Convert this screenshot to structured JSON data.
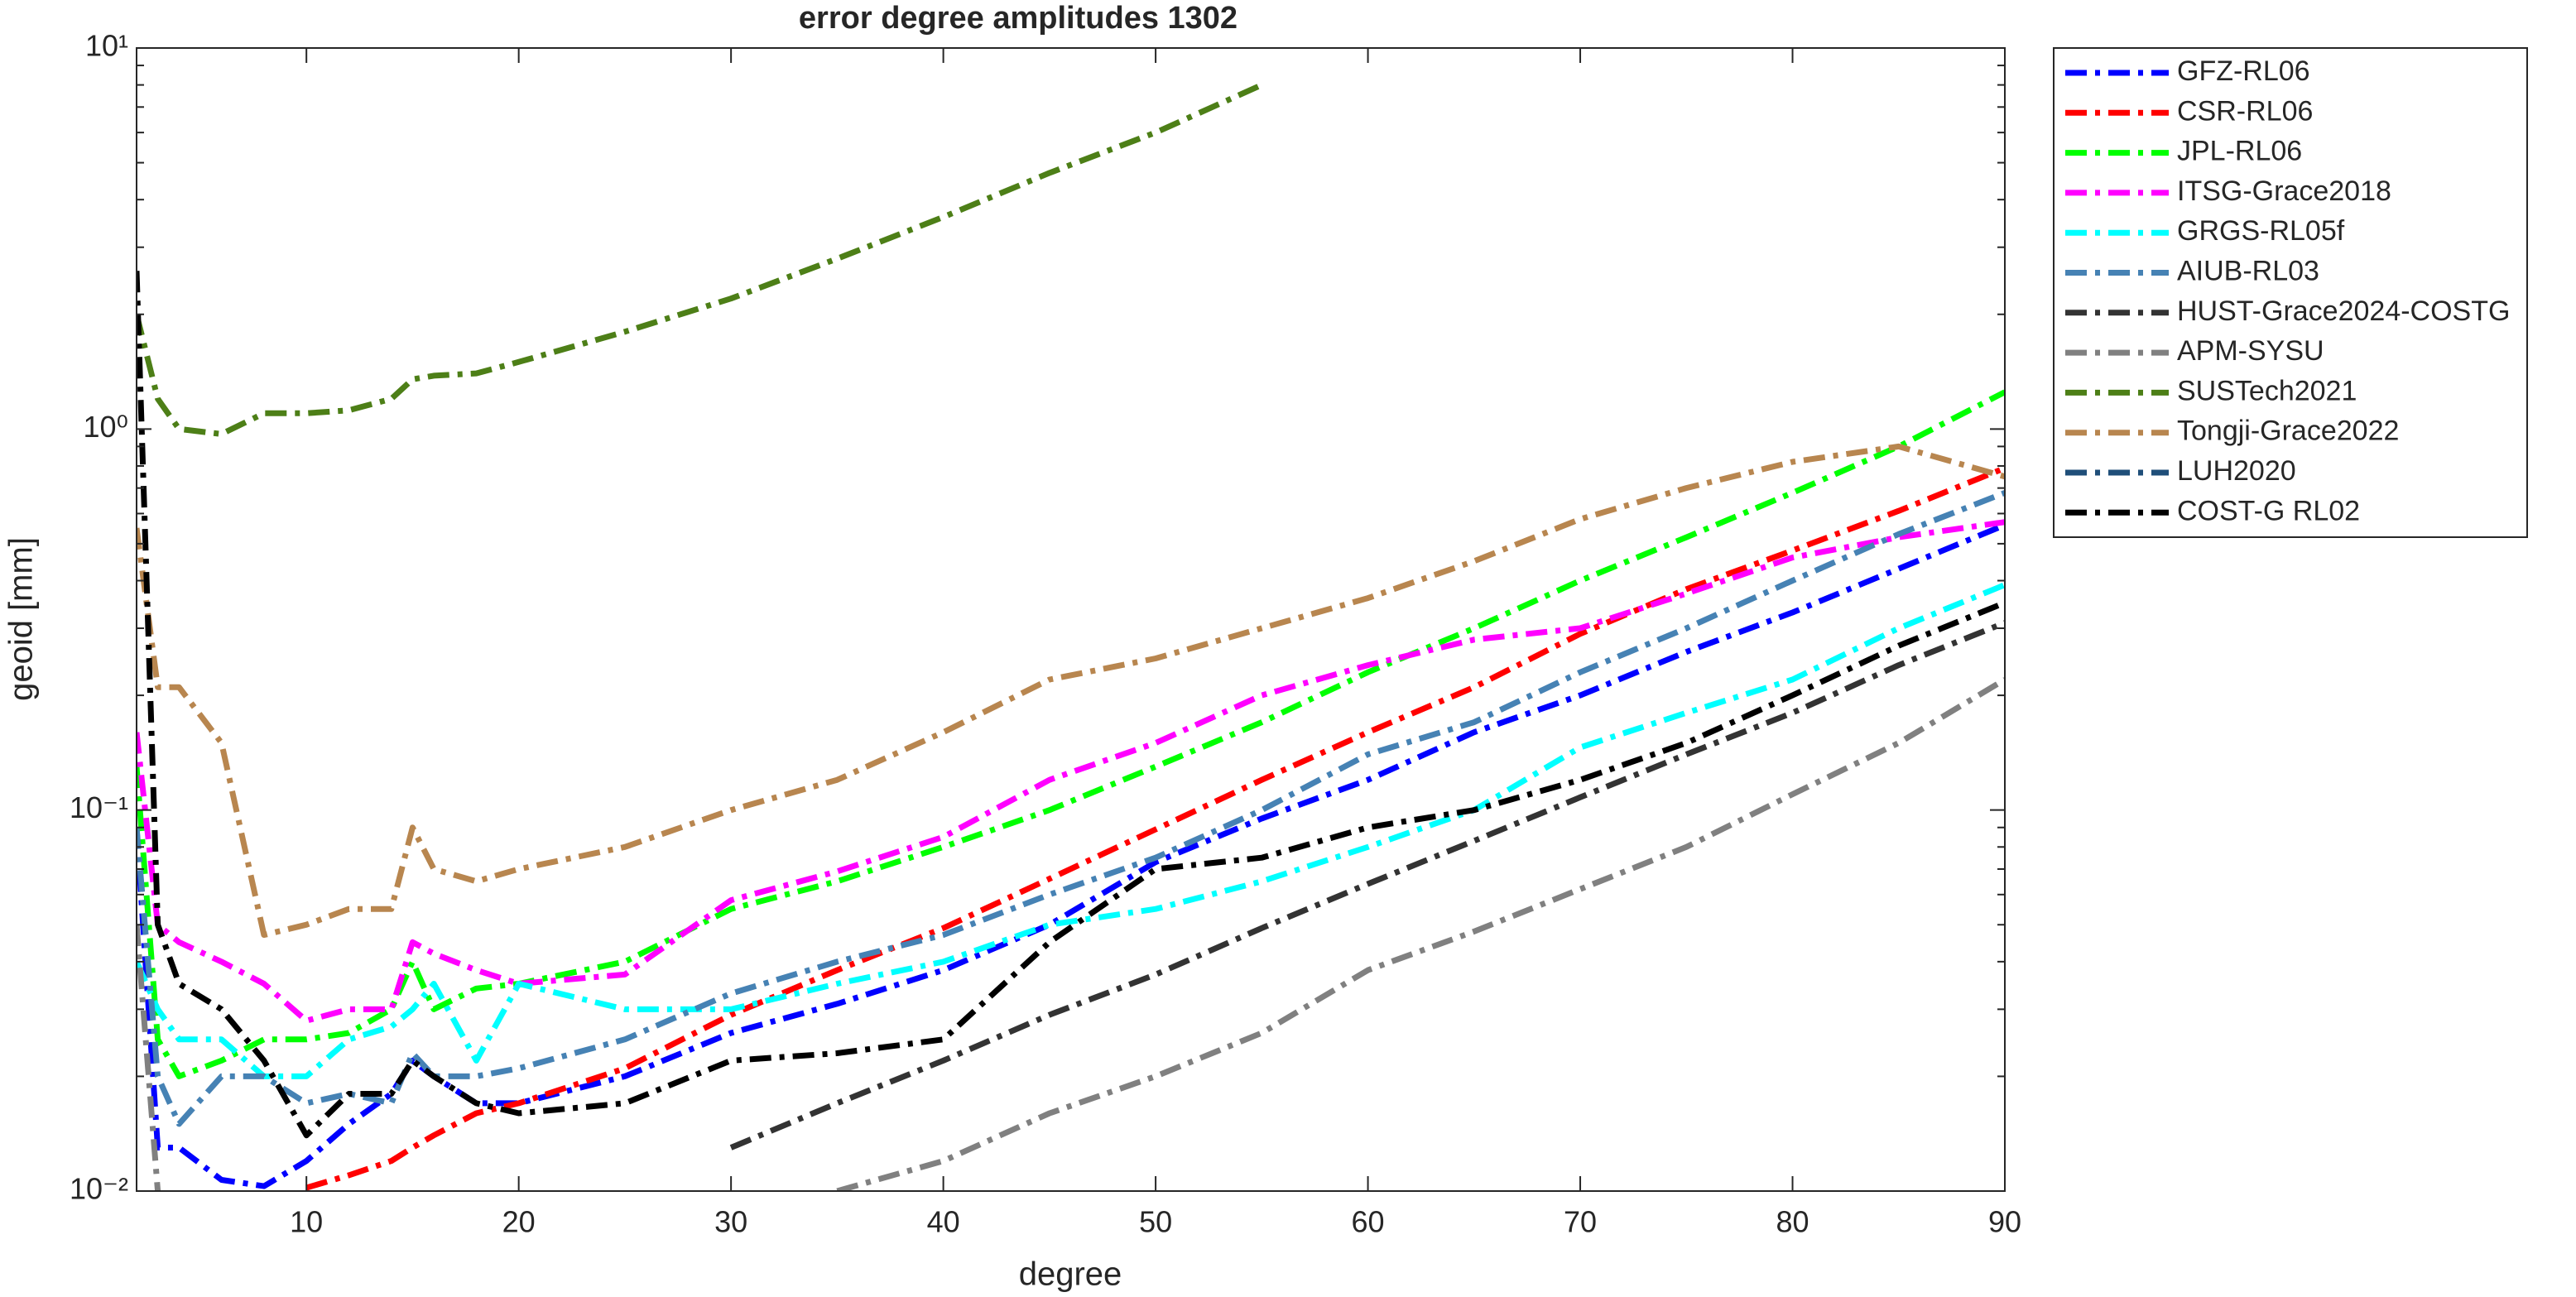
{
  "chart_data": {
    "type": "line",
    "title": "error degree amplitudes 1302",
    "xlabel": "degree",
    "ylabel": "geoid [mm]",
    "log_y": true,
    "legend": "outside right",
    "x": [
      2,
      3,
      4,
      6,
      8,
      10,
      12,
      14,
      15,
      16,
      18,
      20,
      25,
      30,
      35,
      40,
      45,
      50,
      55,
      60,
      65,
      70,
      75,
      80,
      85,
      90
    ],
    "xlim": [
      2,
      90
    ],
    "xticks": [
      10,
      20,
      30,
      40,
      50,
      60,
      70,
      80,
      90
    ],
    "ylim": [
      0.01,
      10
    ],
    "yticks": [
      {
        "value": 0.01,
        "label": "10⁻²"
      },
      {
        "value": 0.1,
        "label": "10⁻¹"
      },
      {
        "value": 1,
        "label": "10⁰"
      },
      {
        "value": 10,
        "label": "10¹"
      }
    ],
    "series": [
      {
        "name": "GFZ-RL06",
        "color": "#0000ff",
        "values": [
          0.09,
          0.013,
          0.013,
          0.0107,
          0.0103,
          0.012,
          0.015,
          0.018,
          0.022,
          0.02,
          0.017,
          0.017,
          0.02,
          0.026,
          0.031,
          0.038,
          0.05,
          0.073,
          0.095,
          0.12,
          0.16,
          0.2,
          0.26,
          0.33,
          0.43,
          0.56
        ]
      },
      {
        "name": "CSR-RL06",
        "color": "#ff0000",
        "values": [
          null,
          null,
          null,
          null,
          null,
          0.0102,
          0.011,
          0.012,
          0.013,
          0.014,
          0.016,
          0.017,
          0.021,
          0.029,
          0.038,
          0.049,
          0.066,
          0.089,
          0.12,
          0.16,
          0.21,
          0.29,
          0.38,
          0.48,
          0.61,
          0.79
        ]
      },
      {
        "name": "JPL-RL06",
        "color": "#00ff00",
        "values": [
          0.13,
          0.025,
          0.02,
          0.022,
          0.025,
          0.025,
          0.026,
          0.03,
          0.04,
          0.03,
          0.034,
          0.035,
          0.04,
          0.055,
          0.065,
          0.08,
          0.1,
          0.13,
          0.17,
          0.23,
          0.3,
          0.4,
          0.52,
          0.68,
          0.9,
          1.25
        ]
      },
      {
        "name": "ITSG-Grace2018",
        "color": "#ff00ff",
        "values": [
          0.16,
          0.05,
          0.045,
          0.04,
          0.035,
          0.028,
          0.03,
          0.03,
          0.045,
          0.042,
          0.038,
          0.035,
          0.037,
          0.058,
          0.069,
          0.085,
          0.12,
          0.15,
          0.2,
          0.24,
          0.28,
          0.3,
          0.37,
          0.46,
          0.52,
          0.57
        ]
      },
      {
        "name": "GRGS-RL05f",
        "color": "#00ffff",
        "values": [
          0.04,
          0.03,
          0.025,
          0.025,
          0.02,
          0.02,
          0.025,
          0.027,
          0.03,
          0.035,
          0.022,
          0.035,
          0.03,
          0.03,
          0.035,
          0.04,
          0.05,
          0.055,
          0.065,
          0.08,
          0.1,
          0.146,
          0.18,
          0.22,
          0.3,
          0.39
        ]
      },
      {
        "name": "AIUB-RL03",
        "color": "#4682b4",
        "values": [
          0.09,
          0.02,
          0.015,
          0.02,
          0.02,
          0.017,
          0.018,
          0.017,
          0.023,
          0.02,
          0.02,
          0.021,
          0.025,
          0.033,
          0.04,
          0.047,
          0.06,
          0.075,
          0.1,
          0.14,
          0.17,
          0.23,
          0.3,
          0.4,
          0.53,
          0.68
        ]
      },
      {
        "name": "HUST-Grace2024-COSTG",
        "color": "#333333",
        "values": [
          null,
          null,
          null,
          null,
          null,
          null,
          null,
          null,
          null,
          null,
          null,
          null,
          null,
          0.013,
          0.017,
          0.022,
          0.029,
          0.037,
          0.049,
          0.064,
          0.083,
          0.108,
          0.14,
          0.18,
          0.24,
          0.31
        ]
      },
      {
        "name": "APM-SYSU",
        "color": "#808080",
        "values": [
          0.05,
          0.01,
          null,
          null,
          null,
          null,
          null,
          null,
          null,
          null,
          null,
          null,
          null,
          null,
          0.01,
          0.012,
          0.016,
          0.02,
          0.026,
          0.038,
          0.048,
          0.062,
          0.08,
          0.11,
          0.15,
          0.22
        ]
      },
      {
        "name": "SUSTech2021",
        "color": "#4d7f17",
        "values": [
          2.0,
          1.2,
          1.0,
          0.97,
          1.1,
          1.1,
          1.12,
          1.2,
          1.35,
          1.38,
          1.4,
          1.5,
          1.8,
          2.2,
          2.8,
          3.6,
          4.7,
          6.0,
          8.0,
          null,
          null,
          null,
          null,
          null,
          null,
          null
        ]
      },
      {
        "name": "Tongji-Grace2022",
        "color": "#b8864f",
        "values": [
          0.55,
          0.21,
          0.21,
          0.15,
          0.047,
          0.05,
          0.055,
          0.055,
          0.09,
          0.07,
          0.065,
          0.07,
          0.08,
          0.1,
          0.12,
          0.16,
          0.22,
          0.25,
          0.3,
          0.36,
          0.45,
          0.58,
          0.7,
          0.82,
          0.9,
          0.75
        ]
      },
      {
        "name": "LUH2020",
        "color": "#1f4e79",
        "values": [
          null,
          null,
          null,
          null,
          null,
          null,
          null,
          null,
          null,
          null,
          null,
          null,
          null,
          null,
          null,
          null,
          null,
          null,
          null,
          null,
          null,
          null,
          null,
          null,
          null,
          null
        ]
      },
      {
        "name": "COST-G RL02",
        "color": "#000000",
        "values": [
          2.6,
          0.05,
          0.035,
          0.03,
          0.022,
          0.014,
          0.018,
          0.018,
          0.022,
          0.02,
          0.017,
          0.016,
          0.017,
          0.022,
          0.023,
          0.025,
          0.045,
          0.07,
          0.075,
          0.09,
          0.1,
          0.12,
          0.15,
          0.2,
          0.27,
          0.35
        ]
      }
    ]
  }
}
